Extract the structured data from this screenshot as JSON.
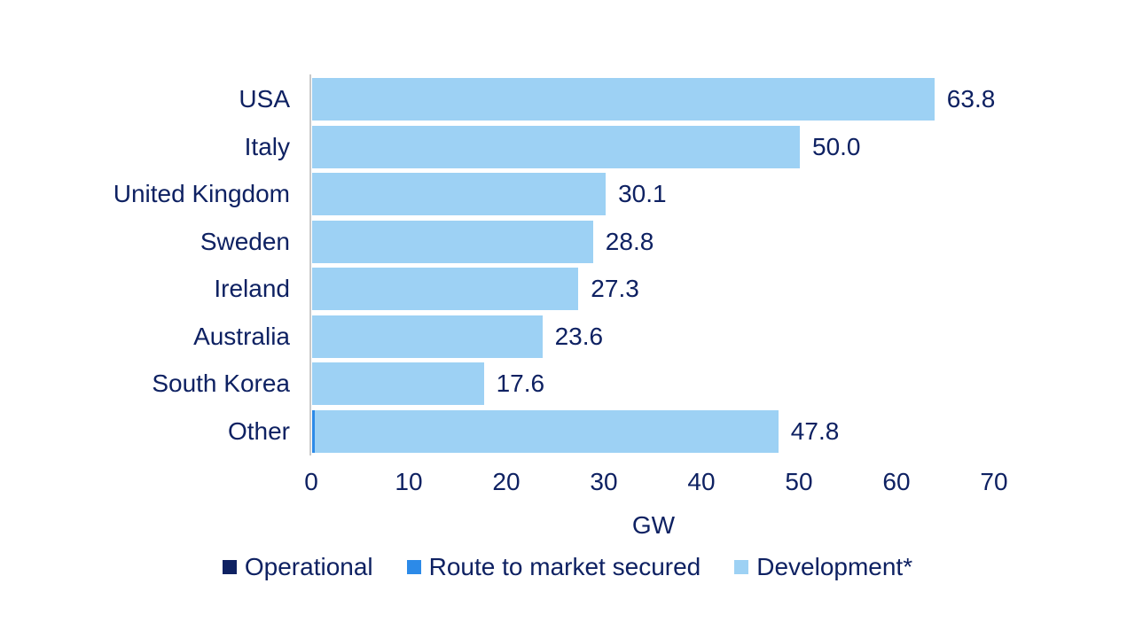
{
  "chart_data": {
    "type": "bar",
    "orientation": "horizontal",
    "title": "",
    "xlabel": "GW",
    "ylabel": "",
    "xlim": [
      0,
      70
    ],
    "x_ticks": [
      "0",
      "10",
      "20",
      "30",
      "40",
      "50",
      "60",
      "70"
    ],
    "grid": false,
    "legend_position": "bottom",
    "categories": [
      "USA",
      "Italy",
      "United Kingdom",
      "Sweden",
      "Ireland",
      "Australia",
      "South Korea",
      "Other"
    ],
    "series": [
      {
        "name": "Operational",
        "color": "#0e2162",
        "values": [
          0,
          0,
          0,
          0,
          0,
          0,
          0,
          0
        ]
      },
      {
        "name": "Route to market secured",
        "color": "#2c8ae8",
        "values": [
          0,
          0,
          0,
          0,
          0,
          0,
          0,
          0.3
        ]
      },
      {
        "name": "Development*",
        "color": "#9dd1f4",
        "values": [
          63.8,
          50.0,
          30.1,
          28.8,
          27.3,
          23.6,
          17.6,
          47.5
        ]
      }
    ],
    "totals": [
      63.8,
      50.0,
      30.1,
      28.8,
      27.3,
      23.6,
      17.6,
      47.8
    ],
    "value_labels": [
      "63.8",
      "50.0",
      "30.1",
      "28.8",
      "27.3",
      "23.6",
      "17.6",
      "47.8"
    ],
    "legend": [
      {
        "label": "Operational",
        "color": "#0e2162"
      },
      {
        "label": "Route to market secured",
        "color": "#2c8ae8"
      },
      {
        "label": "Development*",
        "color": "#9dd1f4"
      }
    ],
    "colors": {
      "text": "#0e2162",
      "axis_line": "#c9c9c9",
      "background": "#ffffff"
    }
  }
}
